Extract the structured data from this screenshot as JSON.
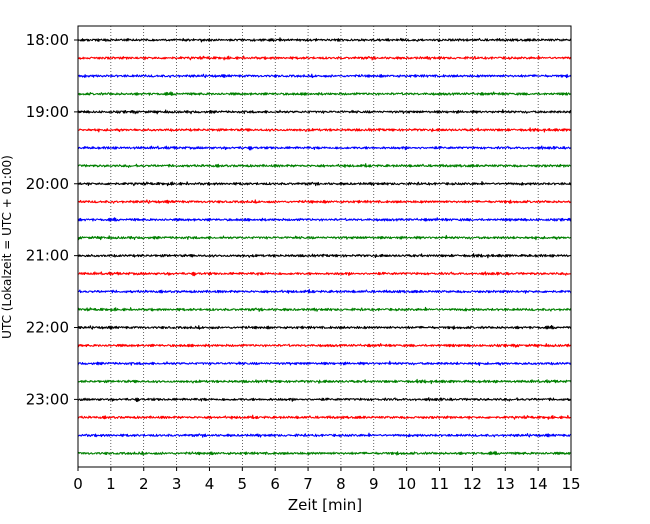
{
  "chart_data": {
    "type": "line",
    "title": "",
    "xlabel": "Zeit  [min]",
    "ylabel": "UTC (Lokalzeit = UTC + 01:00)",
    "xlim": [
      0,
      15
    ],
    "x_ticks": [
      0,
      1,
      2,
      3,
      4,
      5,
      6,
      7,
      8,
      9,
      10,
      11,
      12,
      13,
      14,
      15
    ],
    "x_tick_labels": [
      "0",
      "1",
      "2",
      "3",
      "4",
      "5",
      "6",
      "7",
      "8",
      "9",
      "10",
      "11",
      "12",
      "13",
      "14",
      "15"
    ],
    "y_tick_labels": [
      "18:00",
      "19:00",
      "20:00",
      "21:00",
      "22:00",
      "23:00"
    ],
    "y_tick_rows": [
      0,
      4,
      8,
      12,
      16,
      20
    ],
    "row_count": 24,
    "row_interval_min": 15,
    "start_time": "18:00",
    "x_grid": true,
    "grid_style": "dotted",
    "legend": "none",
    "trace_colors": [
      "#000000",
      "#ff0000",
      "#0000ff",
      "#008000"
    ],
    "series": [
      {
        "start": "18:00",
        "values": []
      },
      {
        "start": "18:15",
        "values": []
      },
      {
        "start": "18:30",
        "values": []
      },
      {
        "start": "18:45",
        "values": []
      },
      {
        "start": "19:00",
        "values": []
      },
      {
        "start": "19:15",
        "values": []
      },
      {
        "start": "19:30",
        "values": []
      },
      {
        "start": "19:45",
        "values": []
      },
      {
        "start": "20:00",
        "values": []
      },
      {
        "start": "20:15",
        "values": []
      },
      {
        "start": "20:30",
        "values": []
      },
      {
        "start": "20:45",
        "values": []
      },
      {
        "start": "21:00",
        "values": []
      },
      {
        "start": "21:15",
        "values": []
      },
      {
        "start": "21:30",
        "values": []
      },
      {
        "start": "21:45",
        "values": []
      },
      {
        "start": "22:00",
        "values": []
      },
      {
        "start": "22:15",
        "values": []
      },
      {
        "start": "22:30",
        "values": []
      },
      {
        "start": "22:45",
        "values": []
      },
      {
        "start": "23:00",
        "values": []
      },
      {
        "start": "23:15",
        "values": []
      },
      {
        "start": "23:30",
        "values": []
      },
      {
        "start": "23:45",
        "values": []
      }
    ]
  }
}
